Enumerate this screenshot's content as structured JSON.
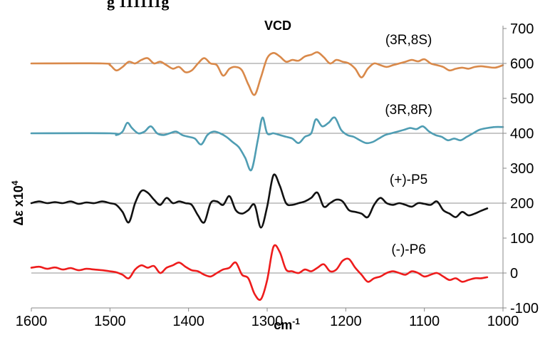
{
  "chart_data": {
    "type": "line",
    "title": "VCD",
    "top_caption": "g 111111g",
    "xlabel": "cm",
    "xlabel_exponent": "-1",
    "ylabel": "Δε x10",
    "ylabel_exponent": "4",
    "xlim": [
      1600,
      1000
    ],
    "ylim": [
      -100,
      700
    ],
    "x_ticks": [
      1600,
      1500,
      1400,
      1300,
      1200,
      1100,
      1000
    ],
    "y_ticks": [
      700,
      600,
      500,
      400,
      300,
      200,
      100,
      0,
      -100
    ],
    "grid": false,
    "baselines": [
      600,
      400,
      200,
      0
    ],
    "series": [
      {
        "name": "(3R,8S)",
        "color": "#d9894a",
        "label_at": [
          1120,
          655
        ],
        "x": [
          1600,
          1510,
          1500,
          1492,
          1484,
          1476,
          1468,
          1460,
          1452,
          1444,
          1436,
          1428,
          1420,
          1412,
          1404,
          1396,
          1388,
          1380,
          1372,
          1364,
          1356,
          1348,
          1340,
          1332,
          1324,
          1316,
          1308,
          1300,
          1292,
          1284,
          1276,
          1268,
          1260,
          1252,
          1244,
          1236,
          1228,
          1220,
          1212,
          1204,
          1196,
          1188,
          1180,
          1172,
          1164,
          1156,
          1148,
          1140,
          1132,
          1124,
          1116,
          1108,
          1100,
          1092,
          1084,
          1076,
          1068,
          1060,
          1052,
          1044,
          1036,
          1028,
          1020,
          1010,
          1000
        ],
        "y": [
          600,
          600,
          595,
          580,
          590,
          605,
          600,
          610,
          615,
          600,
          605,
          595,
          585,
          590,
          575,
          580,
          600,
          615,
          600,
          595,
          565,
          585,
          590,
          580,
          540,
          510,
          560,
          615,
          630,
          620,
          605,
          610,
          608,
          620,
          625,
          632,
          618,
          600,
          610,
          605,
          600,
          585,
          560,
          585,
          600,
          595,
          590,
          595,
          600,
          605,
          610,
          606,
          612,
          600,
          595,
          590,
          580,
          585,
          588,
          585,
          590,
          592,
          590,
          588,
          595
        ]
      },
      {
        "name": "(3R,8R)",
        "color": "#4f9db3",
        "label_at": [
          1120,
          455
        ],
        "x": [
          1600,
          1500,
          1492,
          1484,
          1478,
          1472,
          1464,
          1456,
          1448,
          1440,
          1432,
          1424,
          1416,
          1408,
          1400,
          1392,
          1384,
          1376,
          1368,
          1360,
          1352,
          1344,
          1336,
          1328,
          1320,
          1312,
          1306,
          1300,
          1292,
          1284,
          1276,
          1268,
          1260,
          1252,
          1244,
          1238,
          1230,
          1222,
          1214,
          1206,
          1198,
          1190,
          1182,
          1174,
          1166,
          1158,
          1150,
          1142,
          1134,
          1126,
          1118,
          1110,
          1102,
          1094,
          1086,
          1078,
          1070,
          1062,
          1054,
          1046,
          1038,
          1030,
          1020,
          1010,
          1000
        ],
        "y": [
          400,
          400,
          395,
          405,
          430,
          415,
          400,
          405,
          420,
          400,
          395,
          400,
          405,
          395,
          390,
          385,
          368,
          395,
          405,
          400,
          390,
          375,
          360,
          330,
          295,
          380,
          445,
          400,
          400,
          395,
          390,
          385,
          372,
          390,
          400,
          440,
          420,
          430,
          445,
          410,
          395,
          390,
          380,
          372,
          375,
          385,
          395,
          400,
          405,
          410,
          415,
          412,
          420,
          405,
          395,
          390,
          380,
          385,
          380,
          390,
          400,
          410,
          415,
          418,
          418
        ]
      },
      {
        "name": "(+)-P5",
        "color": "#111111",
        "label_at": [
          1120,
          255
        ],
        "x": [
          1600,
          1590,
          1580,
          1570,
          1560,
          1550,
          1540,
          1530,
          1520,
          1510,
          1500,
          1492,
          1484,
          1476,
          1468,
          1460,
          1452,
          1444,
          1436,
          1428,
          1420,
          1412,
          1404,
          1396,
          1388,
          1380,
          1372,
          1364,
          1356,
          1348,
          1340,
          1332,
          1324,
          1316,
          1308,
          1300,
          1292,
          1284,
          1276,
          1268,
          1260,
          1252,
          1244,
          1236,
          1228,
          1220,
          1212,
          1204,
          1196,
          1188,
          1180,
          1172,
          1164,
          1156,
          1148,
          1140,
          1132,
          1124,
          1116,
          1108,
          1100,
          1092,
          1084,
          1076,
          1068,
          1060,
          1052,
          1044,
          1036,
          1028,
          1020
        ],
        "y": [
          200,
          205,
          200,
          203,
          200,
          205,
          198,
          202,
          200,
          205,
          200,
          195,
          175,
          145,
          200,
          235,
          230,
          210,
          195,
          215,
          200,
          205,
          200,
          195,
          165,
          145,
          200,
          205,
          195,
          220,
          180,
          170,
          180,
          195,
          130,
          190,
          280,
          250,
          200,
          195,
          200,
          205,
          215,
          230,
          190,
          200,
          210,
          205,
          180,
          175,
          170,
          160,
          195,
          215,
          200,
          195,
          200,
          195,
          190,
          200,
          198,
          195,
          205,
          180,
          170,
          160,
          175,
          165,
          170,
          178,
          185
        ]
      },
      {
        "name": "(-)-P6",
        "color": "#ee1c1c",
        "label_at": [
          1120,
          55
        ],
        "x": [
          1600,
          1590,
          1580,
          1570,
          1560,
          1550,
          1540,
          1530,
          1520,
          1510,
          1500,
          1492,
          1484,
          1476,
          1468,
          1460,
          1452,
          1444,
          1436,
          1428,
          1420,
          1412,
          1404,
          1396,
          1388,
          1380,
          1372,
          1364,
          1356,
          1348,
          1340,
          1332,
          1324,
          1316,
          1308,
          1300,
          1292,
          1284,
          1276,
          1268,
          1260,
          1252,
          1244,
          1236,
          1228,
          1220,
          1212,
          1204,
          1196,
          1188,
          1180,
          1172,
          1164,
          1156,
          1148,
          1140,
          1132,
          1124,
          1116,
          1108,
          1100,
          1092,
          1084,
          1076,
          1068,
          1060,
          1052,
          1044,
          1036,
          1028,
          1020
        ],
        "y": [
          15,
          18,
          12,
          16,
          10,
          14,
          8,
          12,
          10,
          8,
          5,
          2,
          -5,
          -15,
          10,
          22,
          15,
          20,
          0,
          15,
          22,
          30,
          18,
          8,
          5,
          -5,
          -10,
          0,
          10,
          15,
          30,
          -5,
          -15,
          -60,
          -75,
          -20,
          75,
          60,
          10,
          5,
          0,
          10,
          5,
          15,
          25,
          5,
          10,
          35,
          40,
          15,
          -5,
          -25,
          -15,
          -10,
          0,
          5,
          0,
          -5,
          5,
          0,
          -10,
          -5,
          0,
          -10,
          -20,
          -15,
          -25,
          -20,
          -15,
          -15,
          -12
        ]
      }
    ]
  }
}
